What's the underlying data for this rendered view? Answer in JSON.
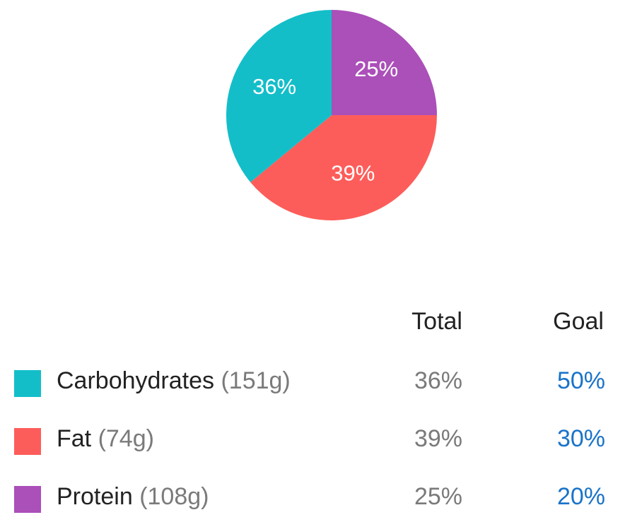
{
  "chart_data": {
    "type": "pie",
    "slices": [
      {
        "name": "Protein",
        "value": 25,
        "label": "25%",
        "color": "#ab4fb9"
      },
      {
        "name": "Fat",
        "value": 39,
        "label": "39%",
        "color": "#fd5d5a"
      },
      {
        "name": "Carbohydrates",
        "value": 36,
        "label": "36%",
        "color": "#13bec9"
      }
    ]
  },
  "table": {
    "total_header": "Total",
    "goal_header": "Goal",
    "rows": [
      {
        "name": "Carbohydrates",
        "amount": "(151g)",
        "total": "36%",
        "goal": "50%",
        "color": "#13bec9"
      },
      {
        "name": "Fat",
        "amount": "(74g)",
        "total": "39%",
        "goal": "30%",
        "color": "#fd5d5a"
      },
      {
        "name": "Protein",
        "amount": "(108g)",
        "total": "25%",
        "goal": "20%",
        "color": "#ab4fb9"
      }
    ]
  }
}
